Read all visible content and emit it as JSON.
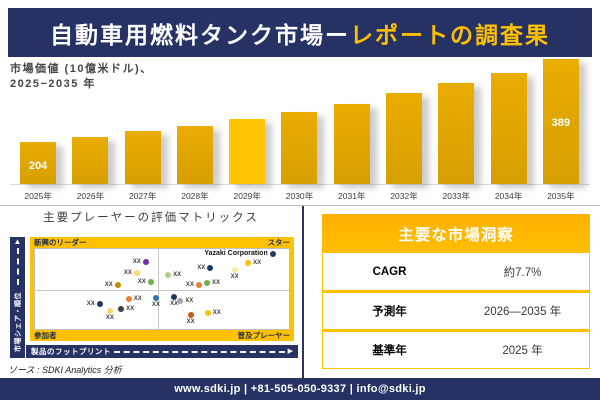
{
  "page": {
    "title_part1": "自動車用燃料タンク市場ー",
    "title_part2": "レポートの調査果",
    "source_note": "ソース : SDKI Analytics 分析",
    "footer_text": "www.sdki.jp | +81-505-050-9337 | info@sdki.jp"
  },
  "colors": {
    "navy": "#273264",
    "gold": "#FFC000",
    "bar_gold": "#DDA303",
    "bar_highlight": "#FFC504",
    "insights_header_orange": "#FFB400"
  },
  "chart_data": [
    {
      "type": "bar",
      "title": "市場価値 (10億米ドル)、2025−2035 年",
      "title_line1": "市場価値 (10億米ドル)、",
      "title_line2": "2025−2035 年",
      "categories": [
        "2025年",
        "2026年",
        "2027年",
        "2028年",
        "2029年",
        "2030年",
        "2031年",
        "2032年",
        "2033年",
        "2034年",
        "2035年"
      ],
      "values": [
        204,
        215,
        229,
        240,
        255,
        271,
        289,
        313,
        336,
        358,
        389
      ],
      "shown_data_labels": {
        "2025年": 204,
        "2035年": 389
      },
      "highlight_category": "2029年",
      "xlabel": "",
      "ylabel": "市場価値 (10億米ドル)",
      "grid": false,
      "legend": "none"
    },
    {
      "type": "scatter",
      "title": "主要プレーヤーの評価マトリックス",
      "xlabel": "製品のフットプリント",
      "ylabel": "市場シェア・順位",
      "quadrants": {
        "top_left": "新興のリーダー",
        "top_right": "スター",
        "bottom_left": "参加者",
        "bottom_right": "普及プレーヤー"
      },
      "points": [
        {
          "x": 43.6,
          "y": 16.6,
          "color": "#7030A0",
          "label": "XX",
          "side": "left",
          "bold": false
        },
        {
          "x": 40.1,
          "y": 30.6,
          "color": "#FFD966",
          "label": "XX",
          "side": "left",
          "bold": false
        },
        {
          "x": 32.6,
          "y": 45.6,
          "color": "#BF8F00",
          "label": "XX",
          "side": "left",
          "bold": false
        },
        {
          "x": 45.6,
          "y": 41.3,
          "color": "#70AD47",
          "label": "XX",
          "side": "left",
          "bold": false
        },
        {
          "x": 52.4,
          "y": 31.9,
          "color": "#A9D18E",
          "label": "XX",
          "side": "right",
          "bold": false
        },
        {
          "x": 69.0,
          "y": 24.3,
          "color": "#203864",
          "label": "XX",
          "side": "left",
          "bold": false
        },
        {
          "x": 78.6,
          "y": 26.4,
          "color": "#FFE699",
          "label": "XX",
          "side": "below",
          "bold": false
        },
        {
          "x": 83.9,
          "y": 17.9,
          "color": "#FFC000",
          "label": "XX",
          "side": "right",
          "bold": false
        },
        {
          "x": 93.6,
          "y": 6.0,
          "color": "#203864",
          "label": "Yazaki Corporation",
          "side": "left",
          "bold": true
        },
        {
          "x": 64.5,
          "y": 45.6,
          "color": "#ED7D31",
          "label": "XX",
          "side": "left",
          "bold": false
        },
        {
          "x": 67.7,
          "y": 42.6,
          "color": "#70AD47",
          "label": "XX",
          "side": "right",
          "bold": false
        },
        {
          "x": 36.9,
          "y": 62.5,
          "color": "#ED7D31",
          "label": "XX",
          "side": "right",
          "bold": false
        },
        {
          "x": 47.6,
          "y": 61.3,
          "color": "#2E75B6",
          "label": "XX",
          "side": "below",
          "bold": false
        },
        {
          "x": 25.5,
          "y": 68.9,
          "color": "#203864",
          "label": "XX",
          "side": "left",
          "bold": false
        },
        {
          "x": 33.9,
          "y": 74.5,
          "color": "#404040",
          "label": "XX",
          "side": "right",
          "bold": false
        },
        {
          "x": 29.5,
          "y": 77.5,
          "color": "#FFD966",
          "label": "XX",
          "side": "below",
          "bold": false
        },
        {
          "x": 54.8,
          "y": 59.5,
          "color": "#203864",
          "label": "XX",
          "side": "below",
          "bold": false
        },
        {
          "x": 57.2,
          "y": 64.6,
          "color": "#A6A6A6",
          "label": "XX",
          "side": "right",
          "bold": false
        },
        {
          "x": 61.3,
          "y": 82.9,
          "color": "#C55A11",
          "label": "XX",
          "side": "below",
          "bold": false
        },
        {
          "x": 68.0,
          "y": 80.3,
          "color": "#FFC000",
          "label": "XX",
          "side": "right",
          "bold": false
        }
      ]
    },
    {
      "type": "table",
      "title": "主要な市場洞察",
      "rows": [
        {
          "label": "CAGR",
          "value": "約7.7%"
        },
        {
          "label": "予測年",
          "value": "2026—2035 年"
        },
        {
          "label": "基準年",
          "value": "2025 年"
        }
      ]
    }
  ]
}
